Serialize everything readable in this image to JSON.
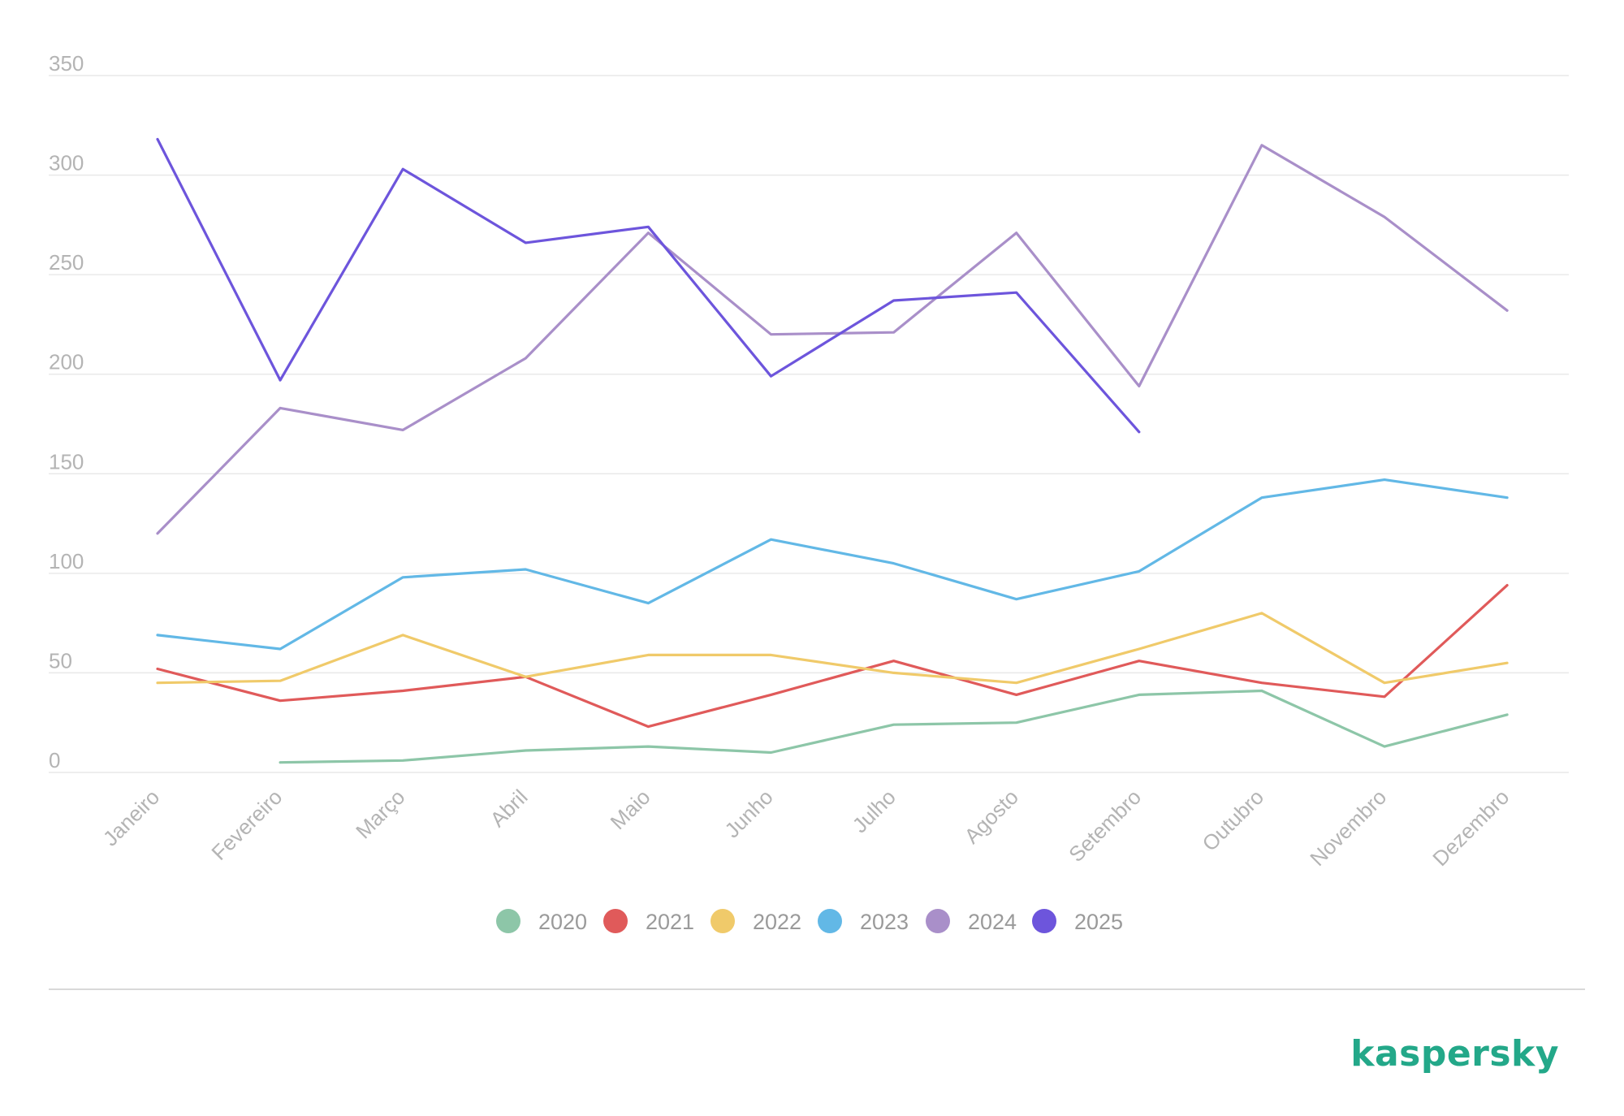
{
  "chart_data": {
    "type": "line",
    "categories": [
      "Janeiro",
      "Fevereiro",
      "Março",
      "Abril",
      "Maio",
      "Junho",
      "Julho",
      "Agosto",
      "Setembro",
      "Outubro",
      "Novembro",
      "Dezembro"
    ],
    "yticks": [
      "0",
      "50",
      "100",
      "150",
      "200",
      "250",
      "300",
      "350"
    ],
    "ylim": [
      0,
      350
    ],
    "grid": true,
    "legend_position": "bottom-center",
    "series": [
      {
        "name": "2020",
        "color": "#8dc6a8",
        "values": [
          null,
          5,
          6,
          11,
          13,
          10,
          24,
          25,
          39,
          41,
          13,
          29
        ]
      },
      {
        "name": "2021",
        "color": "#e05a5a",
        "values": [
          52,
          36,
          41,
          48,
          23,
          39,
          56,
          39,
          56,
          45,
          38,
          94
        ]
      },
      {
        "name": "2022",
        "color": "#f0ca6a",
        "values": [
          45,
          46,
          69,
          48,
          59,
          59,
          50,
          45,
          62,
          80,
          45,
          55
        ]
      },
      {
        "name": "2023",
        "color": "#62b8e6",
        "values": [
          69,
          62,
          98,
          102,
          85,
          117,
          105,
          87,
          101,
          138,
          147,
          138
        ]
      },
      {
        "name": "2024",
        "color": "#a98fc9",
        "values": [
          120,
          183,
          172,
          208,
          271,
          220,
          221,
          271,
          194,
          315,
          279,
          232
        ]
      },
      {
        "name": "2025",
        "color": "#6d55dc",
        "values": [
          318,
          197,
          303,
          266,
          274,
          199,
          237,
          241,
          171,
          null,
          null,
          null
        ]
      }
    ]
  },
  "brand": {
    "logo_text": "kaspersky",
    "color": "#23a889"
  }
}
